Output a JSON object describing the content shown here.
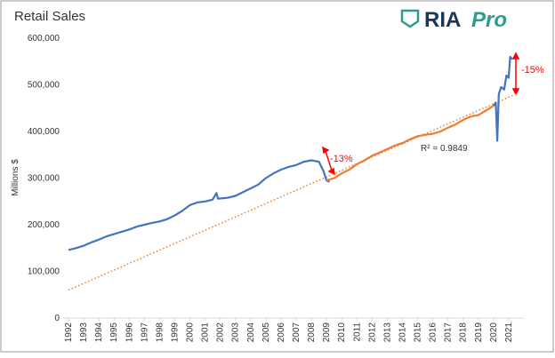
{
  "chart_data": {
    "type": "line",
    "title": "Retail Sales",
    "logo": "RIA",
    "logo_sub": "Pro",
    "y_label": "Millions $",
    "xlim": [
      1992,
      2022
    ],
    "ylim": [
      0,
      600000
    ],
    "xticks": [
      1992,
      1993,
      1994,
      1995,
      1996,
      1997,
      1998,
      1999,
      2000,
      2001,
      2002,
      2003,
      2004,
      2005,
      2006,
      2007,
      2008,
      2009,
      2010,
      2011,
      2012,
      2013,
      2014,
      2015,
      2016,
      2017,
      2018,
      2019,
      2020,
      2021
    ],
    "yticks": [
      0,
      {
        "value": 100000,
        "label": "100,000"
      },
      {
        "value": 200000,
        "label": "200,000"
      },
      {
        "value": 300000,
        "label": "300,000"
      },
      {
        "value": 400000,
        "label": "400,000"
      },
      {
        "value": 500000,
        "label": "500,000"
      },
      {
        "value": 600000,
        "label": "600,000"
      }
    ],
    "series": [
      {
        "color": "#4472c4",
        "x": [
          1992,
          1992.5,
          1993,
          1993.5,
          1994,
          1994.5,
          1995,
          1995.5,
          1996,
          1996.5,
          1997,
          1997.5,
          1998,
          1998.5,
          1999,
          1999.5,
          2000,
          2000.5,
          2001,
          2001.5,
          2001.75,
          2001.85,
          2002.5,
          2003,
          2003.5,
          2004,
          2004.5,
          2005,
          2005.5,
          2006,
          2006.5,
          2007,
          2007.5,
          2008,
          2008.5,
          2008.8,
          2009,
          2009.2,
          2009.6,
          2020,
          2020.15,
          2020.25,
          2020.35,
          2020.5,
          2020.7,
          2020.85,
          2021,
          2021.1,
          2021.25
        ],
        "values": [
          146000,
          150000,
          155000,
          162000,
          168000,
          175000,
          180000,
          185000,
          190000,
          196000,
          200000,
          204000,
          207000,
          212000,
          220000,
          230000,
          242000,
          248000,
          250000,
          254000,
          268000,
          256000,
          258000,
          262000,
          270000,
          278000,
          286000,
          300000,
          310000,
          318000,
          324000,
          328000,
          335000,
          338000,
          335000,
          315000,
          295000,
          292000,
          null,
          455000,
          462000,
          380000,
          480000,
          495000,
          490000,
          520000,
          515000,
          560000,
          555000
        ]
      },
      {
        "color": "#ed7d31",
        "x": [
          2009,
          2009.5,
          2010,
          2010.5,
          2011,
          2011.5,
          2012,
          2012.5,
          2013,
          2013.5,
          2014,
          2014.5,
          2015,
          2015.5,
          2016,
          2016.5,
          2017,
          2017.5,
          2018,
          2018.5,
          2019,
          2019.5,
          2020
        ],
        "values": [
          295000,
          300000,
          310000,
          318000,
          330000,
          338000,
          348000,
          355000,
          362000,
          370000,
          375000,
          383000,
          390000,
          393000,
          395000,
          400000,
          408000,
          415000,
          425000,
          432000,
          435000,
          445000,
          455000
        ]
      }
    ],
    "trend": {
      "color": "#ed7d31",
      "x": [
        1992,
        2021.6
      ],
      "values": [
        60000,
        482000
      ]
    },
    "r2_label": "R² = 0.9849",
    "annotations": [
      {
        "text": "-13%",
        "color": "#ff0000"
      },
      {
        "text": "-15%",
        "color": "#ff0000"
      }
    ]
  }
}
